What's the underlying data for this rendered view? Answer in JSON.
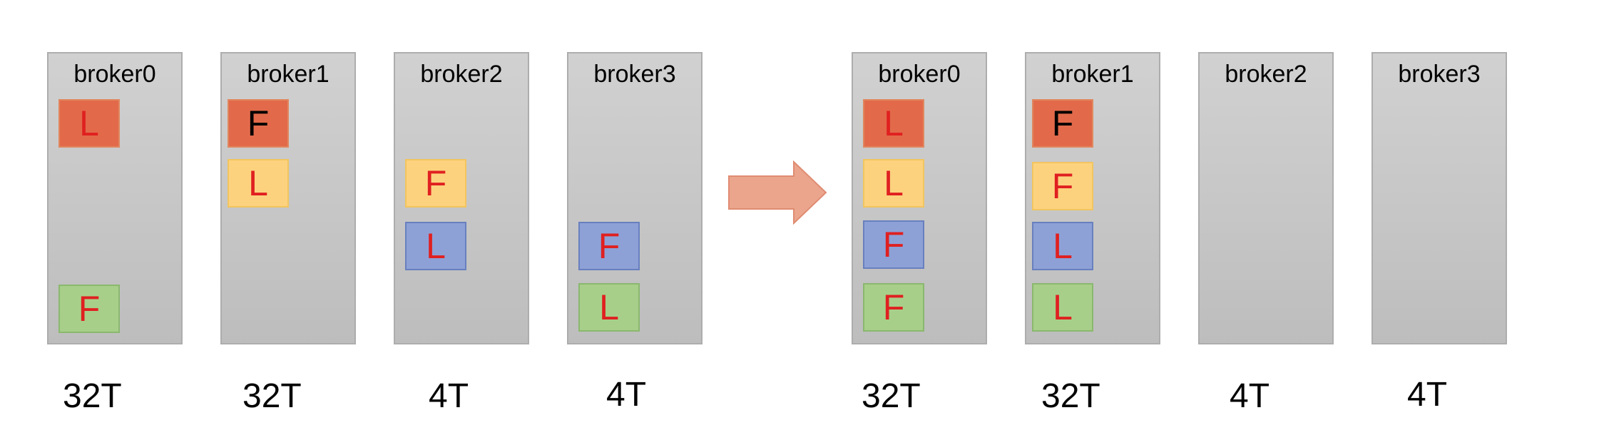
{
  "colors": {
    "red": "#e26a4a",
    "yellow": "#fcd27f",
    "blue": "#8ea1d6",
    "green": "#a8cf8a",
    "text_red": "#e02020",
    "text_black": "#000000",
    "arrow": "#eba58d"
  },
  "before": {
    "brokers": [
      {
        "name": "broker0",
        "capacity": "32T",
        "replicas": [
          {
            "role": "L",
            "color": "red",
            "text": "red"
          },
          {
            "role": "F",
            "color": "green",
            "text": "red"
          }
        ]
      },
      {
        "name": "broker1",
        "capacity": "32T",
        "replicas": [
          {
            "role": "F",
            "color": "red",
            "text": "black"
          },
          {
            "role": "L",
            "color": "yellow",
            "text": "red"
          }
        ]
      },
      {
        "name": "broker2",
        "capacity": "4T",
        "replicas": [
          {
            "role": "F",
            "color": "yellow",
            "text": "red"
          },
          {
            "role": "L",
            "color": "blue",
            "text": "red"
          }
        ]
      },
      {
        "name": "broker3",
        "capacity": "4T",
        "replicas": [
          {
            "role": "F",
            "color": "blue",
            "text": "red"
          },
          {
            "role": "L",
            "color": "green",
            "text": "red"
          }
        ]
      }
    ]
  },
  "after": {
    "brokers": [
      {
        "name": "broker0",
        "capacity": "32T",
        "replicas": [
          {
            "role": "L",
            "color": "red",
            "text": "red"
          },
          {
            "role": "L",
            "color": "yellow",
            "text": "red"
          },
          {
            "role": "F",
            "color": "blue",
            "text": "red"
          },
          {
            "role": "F",
            "color": "green",
            "text": "red"
          }
        ]
      },
      {
        "name": "broker1",
        "capacity": "32T",
        "replicas": [
          {
            "role": "F",
            "color": "red",
            "text": "black"
          },
          {
            "role": "F",
            "color": "yellow",
            "text": "red"
          },
          {
            "role": "L",
            "color": "blue",
            "text": "red"
          },
          {
            "role": "L",
            "color": "green",
            "text": "red"
          }
        ]
      },
      {
        "name": "broker2",
        "capacity": "4T",
        "replicas": []
      },
      {
        "name": "broker3",
        "capacity": "4T",
        "replicas": []
      }
    ]
  },
  "arrow_icon": "right-arrow-icon"
}
